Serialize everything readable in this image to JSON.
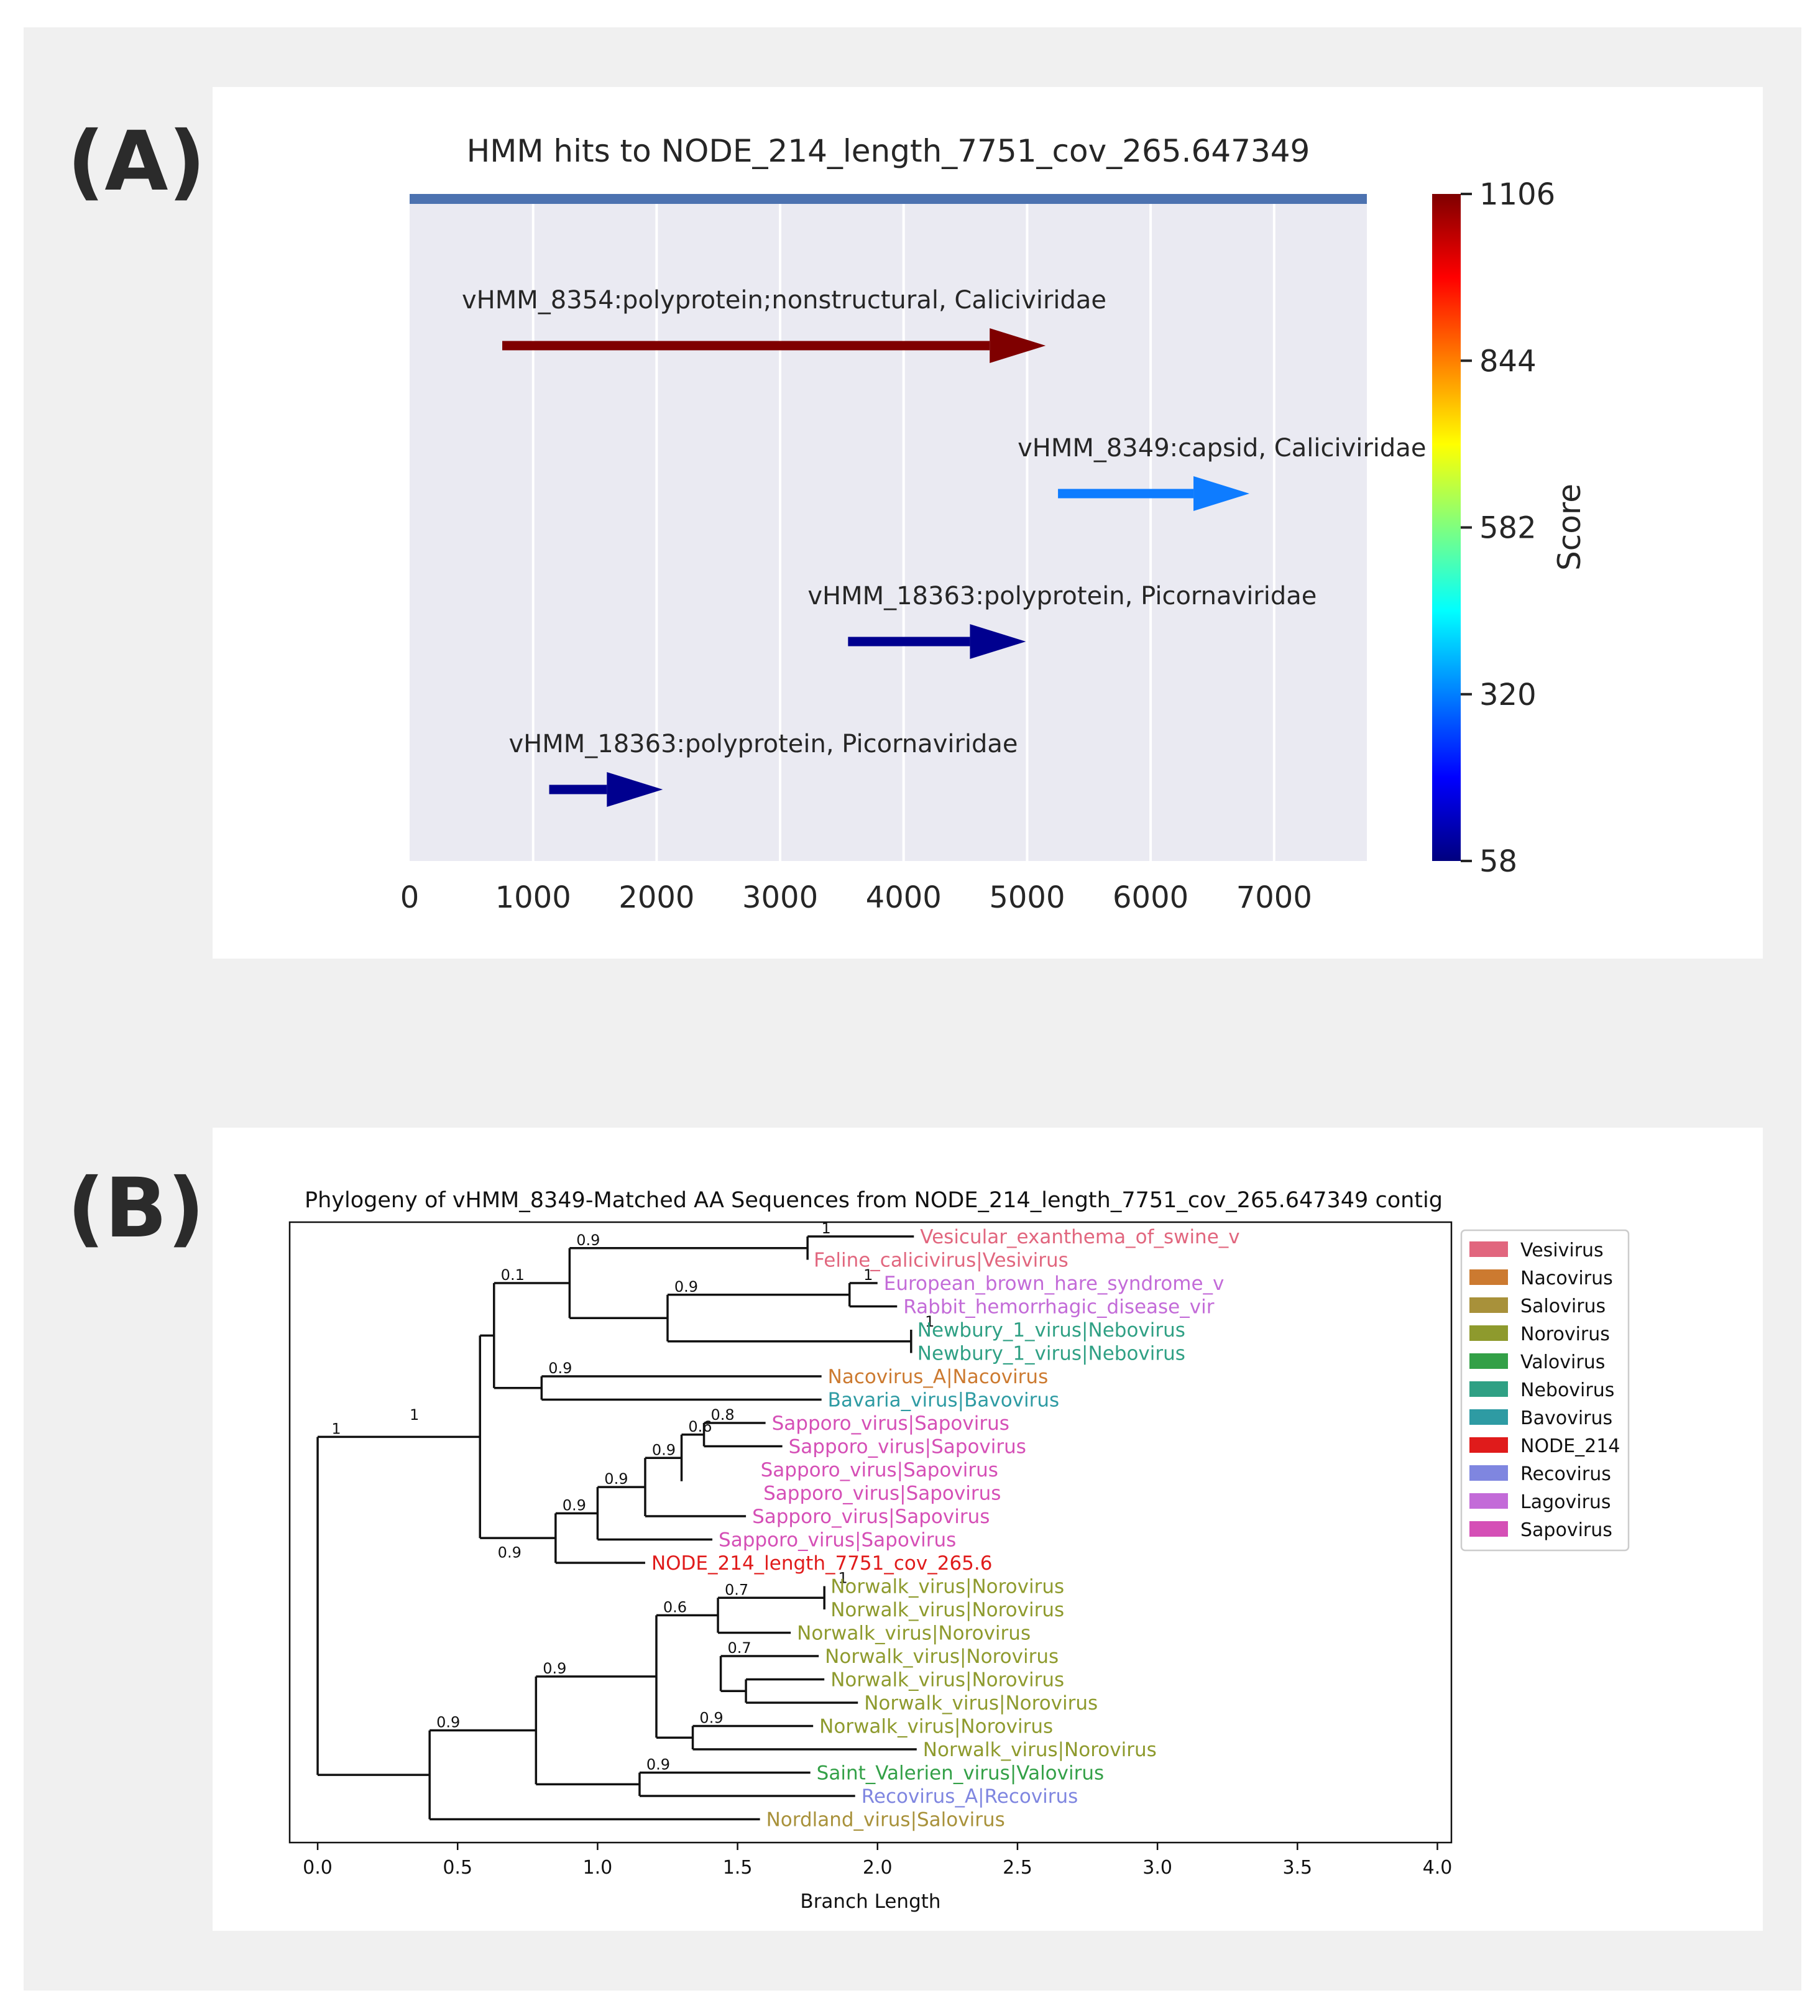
{
  "figure": {
    "label_a": "(A)",
    "label_b": "(B)"
  },
  "colors": {
    "frame_bg": "#f0f0f0",
    "axes_bg": "#eaeaf2",
    "contig_bar": "#4c72b0"
  },
  "chart_data": [
    {
      "type": "bar",
      "title": "HMM hits to NODE_214_length_7751_cov_265.647349",
      "xlim": [
        0,
        7751
      ],
      "xticks": [
        0,
        1000,
        2000,
        3000,
        4000,
        5000,
        6000,
        7000
      ],
      "xlabel": "",
      "ylabel": "",
      "grid": true,
      "contig_length": 7751,
      "hits": [
        {
          "label": "vHMM_8354:polyprotein;nonstructural, Caliciviridae",
          "start": 750,
          "end": 5150,
          "score": 1106,
          "color": "#7f0000"
        },
        {
          "label": "vHMM_8349:capsid, Caliciviridae",
          "start": 5250,
          "end": 6800,
          "score": 300,
          "color": "#0e7cff"
        },
        {
          "label": "vHMM_18363:polyprotein, Picornaviridae",
          "start": 3550,
          "end": 4990,
          "score": 70,
          "color": "#00008f"
        },
        {
          "label": "vHMM_18363:polyprotein, Picornaviridae",
          "start": 1130,
          "end": 2050,
          "score": 58,
          "color": "#00008f"
        }
      ],
      "colorbar": {
        "label": "Score",
        "min": 58,
        "max": 1106,
        "ticks": [
          58,
          320,
          582,
          844,
          1106
        ],
        "colormap": [
          "#00007f",
          "#0000ff",
          "#007fff",
          "#00ffff",
          "#7fff7f",
          "#ffff00",
          "#ff7f00",
          "#ff0000",
          "#7f0000"
        ]
      }
    },
    {
      "type": "tree",
      "title": "Phylogeny of vHMM_8349-Matched AA Sequences from NODE_214_length_7751_cov_265.647349 contig",
      "xlabel": "Branch Length",
      "xlim": [
        -0.1,
        4.05
      ],
      "xticks": [
        0.0,
        0.5,
        1.0,
        1.5,
        2.0,
        2.5,
        3.0,
        3.5,
        4.0
      ],
      "xtick_labels": [
        "0.0",
        "0.5",
        "1.0",
        "1.5",
        "2.0",
        "2.5",
        "3.0",
        "3.5",
        "4.0"
      ],
      "leaves": [
        {
          "name": "Vesicular_exanthema_of_swine_v",
          "x": 2.13,
          "group": "Vesivirus"
        },
        {
          "name": "Feline_calicivirus|Vesivirus",
          "x": 1.75,
          "group": "Vesivirus"
        },
        {
          "name": "European_brown_hare_syndrome_v",
          "x": 2.0,
          "group": "Lagovirus"
        },
        {
          "name": "Rabbit_hemorrhagic_disease_vir",
          "x": 2.07,
          "group": "Lagovirus"
        },
        {
          "name": "Newbury_1_virus|Nebovirus",
          "x": 2.12,
          "group": "Nebovirus"
        },
        {
          "name": "Newbury_1_virus|Nebovirus",
          "x": 2.12,
          "group": "Nebovirus"
        },
        {
          "name": "Nacovirus_A|Nacovirus",
          "x": 1.8,
          "group": "Nacovirus"
        },
        {
          "name": "Bavaria_virus|Bavovirus",
          "x": 1.8,
          "group": "Bavovirus"
        },
        {
          "name": "Sapporo_virus|Sapovirus",
          "x": 1.6,
          "group": "Sapovirus"
        },
        {
          "name": "Sapporo_virus|Sapovirus",
          "x": 1.66,
          "group": "Sapovirus"
        },
        {
          "name": "Sapporo_virus|Sapovirus",
          "x": 1.56,
          "group": "Sapovirus"
        },
        {
          "name": "Sapporo_virus|Sapovirus",
          "x": 1.57,
          "group": "Sapovirus"
        },
        {
          "name": "Sapporo_virus|Sapovirus",
          "x": 1.53,
          "group": "Sapovirus"
        },
        {
          "name": "Sapporo_virus|Sapovirus",
          "x": 1.41,
          "group": "Sapovirus"
        },
        {
          "name": "NODE_214_length_7751_cov_265.6",
          "x": 1.17,
          "group": "NODE_214"
        },
        {
          "name": "Norwalk_virus|Norovirus",
          "x": 1.81,
          "group": "Norovirus"
        },
        {
          "name": "Norwalk_virus|Norovirus",
          "x": 1.81,
          "group": "Norovirus"
        },
        {
          "name": "Norwalk_virus|Norovirus",
          "x": 1.69,
          "group": "Norovirus"
        },
        {
          "name": "Norwalk_virus|Norovirus",
          "x": 1.79,
          "group": "Norovirus"
        },
        {
          "name": "Norwalk_virus|Norovirus",
          "x": 1.81,
          "group": "Norovirus"
        },
        {
          "name": "Norwalk_virus|Norovirus",
          "x": 1.93,
          "group": "Norovirus"
        },
        {
          "name": "Norwalk_virus|Norovirus",
          "x": 1.77,
          "group": "Norovirus"
        },
        {
          "name": "Norwalk_virus|Norovirus",
          "x": 2.14,
          "group": "Norovirus"
        },
        {
          "name": "Saint_Valerien_virus|Valovirus",
          "x": 1.76,
          "group": "Valovirus"
        },
        {
          "name": "Recovirus_A|Recovirus",
          "x": 1.92,
          "group": "Recovirus"
        },
        {
          "name": "Nordland_virus|Salovirus",
          "x": 1.58,
          "group": "Salovirus"
        }
      ],
      "clades": [
        {
          "x": 1.75,
          "from": 0,
          "to": 1,
          "support": "1"
        },
        {
          "x": 1.9,
          "from": 2,
          "to": 3,
          "support": "1"
        },
        {
          "x": 2.12,
          "from": 4,
          "to": 5,
          "support": "1"
        },
        {
          "x": 1.25,
          "from": 2.5,
          "to": 4.5,
          "support": "0.9"
        },
        {
          "x": 0.9,
          "from": 0.5,
          "to": 3.5,
          "support": "0.9"
        },
        {
          "x": 0.8,
          "from": 6,
          "to": 7,
          "support": "0.9"
        },
        {
          "x": 0.63,
          "from": 2,
          "to": 6.5,
          "support": "0.1"
        },
        {
          "x": 1.38,
          "from": 8,
          "to": 9,
          "support": "0.8"
        },
        {
          "x": 1.3,
          "from": 8.5,
          "to": 10.5,
          "support": "0.6"
        },
        {
          "x": 1.17,
          "from": 9.5,
          "to": 12,
          "support": "0.9"
        },
        {
          "x": 1.0,
          "from": 10.75,
          "to": 13,
          "support": "0.9"
        },
        {
          "x": 0.85,
          "from": 11.875,
          "to": 14,
          "support": "0.9"
        },
        {
          "x": 0.58,
          "from": 4.25,
          "to": 12.94,
          "support": ""
        },
        {
          "x": 1.81,
          "from": 15,
          "to": 16,
          "support": "1"
        },
        {
          "x": 1.43,
          "from": 15.5,
          "to": 17,
          "support": "0.7"
        },
        {
          "x": 1.53,
          "from": 19,
          "to": 20,
          "support": ""
        },
        {
          "x": 1.44,
          "from": 18,
          "to": 19.5,
          "support": "0.7"
        },
        {
          "x": 1.34,
          "from": 21,
          "to": 22,
          "support": "0.9"
        },
        {
          "x": 1.21,
          "from": 16.25,
          "to": 21.5,
          "support": "0.6"
        },
        {
          "x": 1.15,
          "from": 23,
          "to": 24,
          "support": "0.9"
        },
        {
          "x": 0.78,
          "from": 18.875,
          "to": 23.5,
          "support": "0.9"
        },
        {
          "x": 0.4,
          "from": 21.19,
          "to": 25,
          "support": "0.9"
        },
        {
          "x": 0.0,
          "from": 8.6,
          "to": 23.1,
          "support": "1"
        }
      ],
      "extra_support_labels": [
        {
          "text": "0.9",
          "x": 0.63,
          "y": 13.9
        },
        {
          "text": "1",
          "x": 0.29,
          "y": 8.0
        }
      ],
      "legend": [
        {
          "name": "Vesivirus",
          "color": "#e1667e"
        },
        {
          "name": "Nacovirus",
          "color": "#cc7a30"
        },
        {
          "name": "Salovirus",
          "color": "#a8913a"
        },
        {
          "name": "Norovirus",
          "color": "#8e9a2d"
        },
        {
          "name": "Valovirus",
          "color": "#33a047"
        },
        {
          "name": "Nebovirus",
          "color": "#2fa084"
        },
        {
          "name": "Bavovirus",
          "color": "#2e9ba3"
        },
        {
          "name": "NODE_214",
          "color": "#e01b1b"
        },
        {
          "name": "Recovirus",
          "color": "#7f86e0"
        },
        {
          "name": "Lagovirus",
          "color": "#c36bd8"
        },
        {
          "name": "Sapovirus",
          "color": "#d54fb6"
        }
      ]
    }
  ]
}
